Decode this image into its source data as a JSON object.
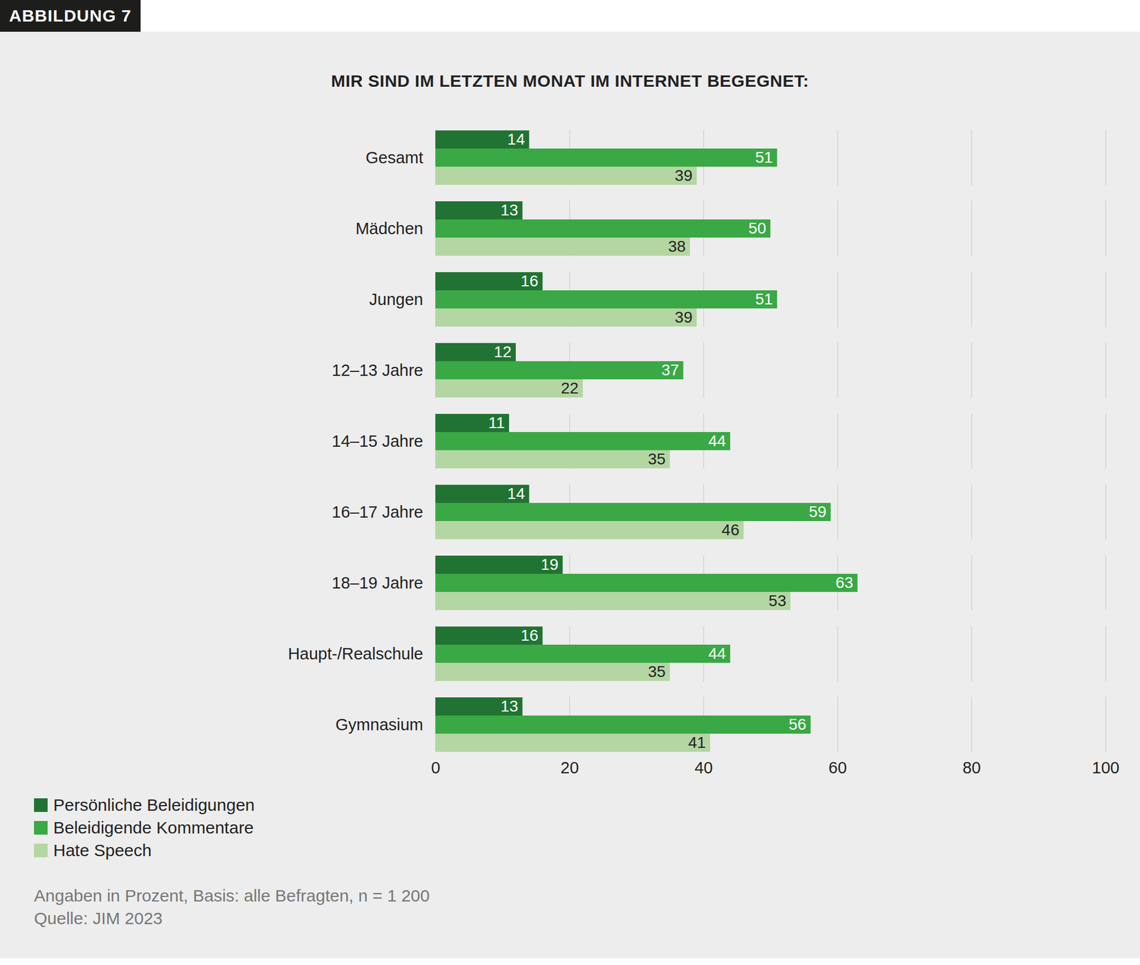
{
  "chart_data": {
    "type": "bar",
    "label": "ABBILDUNG 7",
    "title": "MIR SIND IM LETZTEN MONAT IM INTERNET BEGEGNET:",
    "notes": [
      "Angaben in Prozent, Basis: alle Befragten, n = 1 200",
      "Quelle: JIM 2023"
    ],
    "orientation": "horizontal",
    "categories": [
      "Gesamt",
      "Mädchen",
      "Jungen",
      "12–13 Jahre",
      "14–15 Jahre",
      "16–17 Jahre",
      "18–19 Jahre",
      "Haupt-/Realschule",
      "Gymnasium"
    ],
    "series": [
      {
        "name": "Persönliche Beleidigungen",
        "color": "#217333",
        "values": [
          14,
          13,
          16,
          12,
          11,
          14,
          19,
          16,
          13
        ]
      },
      {
        "name": "Beleidigende Kommentare",
        "color": "#3aa845",
        "values": [
          51,
          50,
          51,
          37,
          44,
          59,
          63,
          44,
          56
        ]
      },
      {
        "name": "Hate Speech",
        "color": "#b3d6a3",
        "values": [
          39,
          38,
          39,
          22,
          35,
          46,
          53,
          35,
          41
        ]
      }
    ],
    "xlim": [
      0,
      100
    ],
    "xticks": [
      0,
      20,
      40,
      60,
      80,
      100
    ],
    "grid": true,
    "data_labels": true,
    "legend": "bottom-left"
  }
}
